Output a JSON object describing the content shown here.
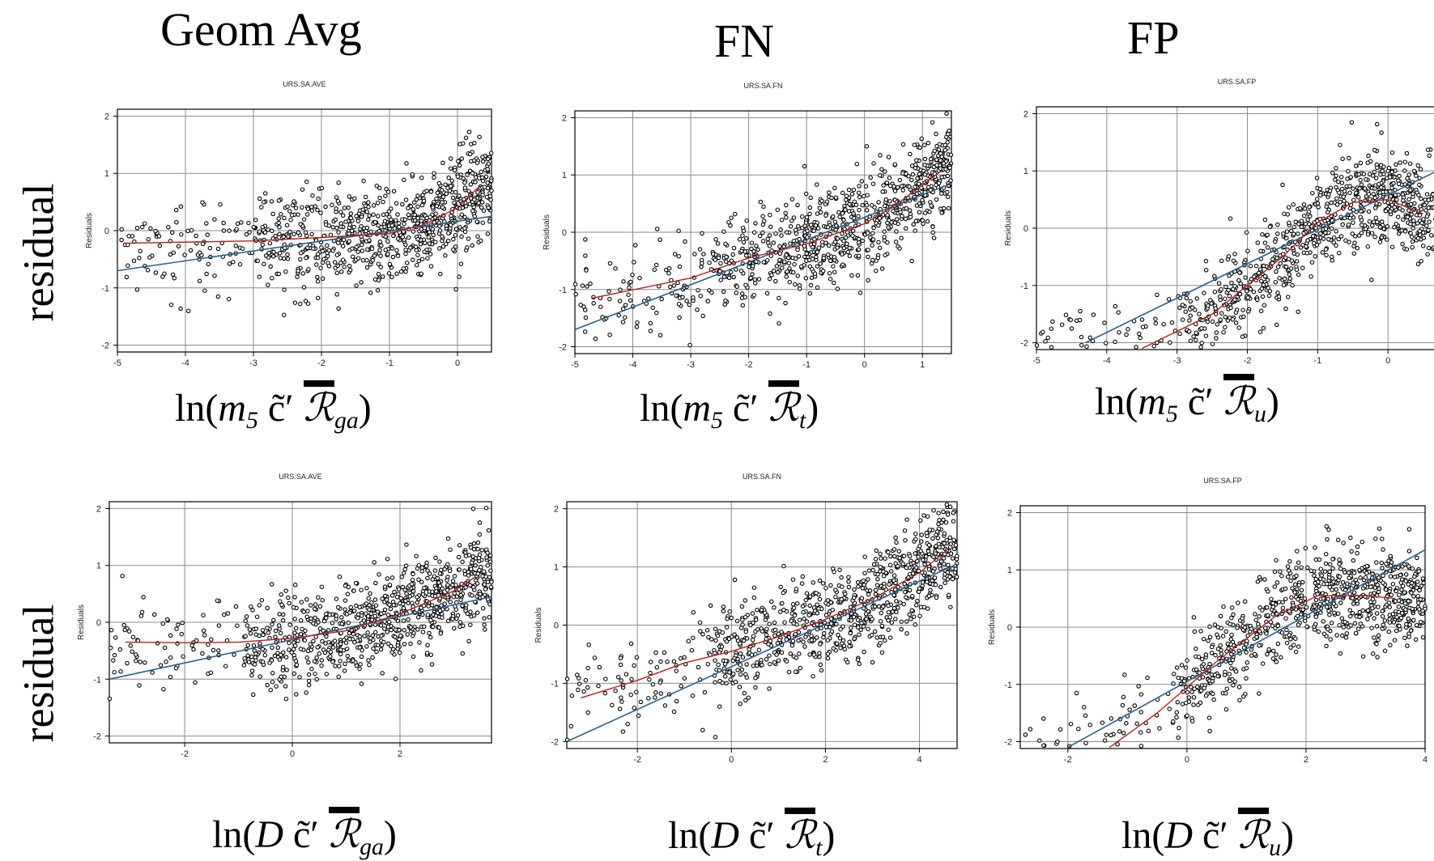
{
  "column_titles": [
    "Geom Avg",
    "FN",
    "FP"
  ],
  "row_label": "residual",
  "chart_data": [
    {
      "type": "scatter",
      "title": "URS.SA.AVE",
      "ylabel": "Residuals",
      "xlim": [
        -5,
        0.5
      ],
      "ylim": [
        -2,
        2
      ],
      "xticks": [
        -5,
        -4,
        -3,
        -2,
        -1,
        0
      ],
      "yticks": [
        -2,
        -1,
        0,
        1,
        2
      ],
      "xlabel": {
        "prefix": "ln(",
        "var": "m",
        "sub": "5",
        "mid": " c̃′ ",
        "R": "ℛ",
        "rsub": "ga",
        "suffix": ")"
      },
      "blue_fit": [
        [
          -5,
          -0.7
        ],
        [
          0.5,
          0.25
        ]
      ],
      "red_fit": [
        [
          -4.9,
          -0.22
        ],
        [
          -3,
          -0.18
        ],
        [
          -2,
          -0.12
        ],
        [
          -1,
          -0.05
        ],
        [
          -0.5,
          0.1
        ],
        [
          0,
          0.4
        ],
        [
          0.3,
          0.75
        ]
      ]
    },
    {
      "type": "scatter",
      "title": "URS.SA.FN",
      "ylabel": "Residuals",
      "xlim": [
        -5,
        1.5
      ],
      "ylim": [
        -2,
        2
      ],
      "xticks": [
        -5,
        -4,
        -3,
        -2,
        -1,
        0,
        1
      ],
      "yticks": [
        -2,
        -1,
        0,
        1,
        2
      ],
      "xlabel": {
        "prefix": "ln(",
        "var": "m",
        "sub": "5",
        "mid": " c̃′ ",
        "R": "ℛ",
        "rsub": "t",
        "suffix": ")"
      },
      "blue_fit": [
        [
          -5,
          -1.7
        ],
        [
          1.5,
          0.85
        ]
      ],
      "red_fit": [
        [
          -4.7,
          -1.15
        ],
        [
          -3,
          -0.8
        ],
        [
          -2,
          -0.45
        ],
        [
          -1,
          -0.2
        ],
        [
          0,
          0.15
        ],
        [
          0.5,
          0.45
        ],
        [
          1.3,
          1.05
        ]
      ]
    },
    {
      "type": "scatter",
      "title": "URS.SA.FP",
      "ylabel": "Residuals",
      "xlim": [
        -5,
        0.7
      ],
      "ylim": [
        -2,
        2
      ],
      "xticks": [
        -5,
        -4,
        -3,
        -2,
        -1,
        0
      ],
      "yticks": [
        -2,
        -1,
        0,
        1,
        2
      ],
      "xlabel": {
        "prefix": "ln(",
        "var": "m",
        "sub": "5",
        "mid": " c̃′ ",
        "R": "ℛ",
        "rsub": "u",
        "suffix": ")"
      },
      "blue_fit": [
        [
          -4.3,
          -2.0
        ],
        [
          0.7,
          1.0
        ]
      ],
      "red_fit": [
        [
          -3.5,
          -2.1
        ],
        [
          -2.5,
          -1.5
        ],
        [
          -1.5,
          -0.5
        ],
        [
          -1,
          0.1
        ],
        [
          -0.5,
          0.45
        ],
        [
          0,
          0.5
        ],
        [
          0.5,
          0.25
        ]
      ]
    },
    {
      "type": "scatter",
      "title": "URS.SA.AVE",
      "ylabel": "Residuals",
      "xlim": [
        -3.4,
        3.7
      ],
      "ylim": [
        -2,
        2
      ],
      "xticks": [
        -2,
        0,
        2
      ],
      "yticks": [
        -2,
        -1,
        0,
        1,
        2
      ],
      "xlabel": {
        "prefix": "ln(",
        "var": "D",
        "sub": "",
        "mid": " c̃′ ",
        "R": "ℛ",
        "rsub": "ga",
        "suffix": ")"
      },
      "blue_fit": [
        [
          -3.4,
          -1.0
        ],
        [
          3.7,
          0.45
        ]
      ],
      "red_fit": [
        [
          -3.1,
          -0.35
        ],
        [
          -2,
          -0.36
        ],
        [
          -1,
          -0.35
        ],
        [
          0,
          -0.28
        ],
        [
          1,
          -0.15
        ],
        [
          2,
          0.15
        ],
        [
          3,
          0.55
        ],
        [
          3.4,
          0.8
        ]
      ]
    },
    {
      "type": "scatter",
      "title": "URS.SA.FN",
      "ylabel": "Residuals",
      "xlim": [
        -3.5,
        4.8
      ],
      "ylim": [
        -2,
        2
      ],
      "xticks": [
        -2,
        0,
        2,
        4
      ],
      "yticks": [
        -2,
        -1,
        0,
        1,
        2
      ],
      "xlabel": {
        "prefix": "ln(",
        "var": "D",
        "sub": "",
        "mid": " c̃′ ",
        "R": "ℛ",
        "rsub": "t",
        "suffix": ")"
      },
      "blue_fit": [
        [
          -3.5,
          -2.0
        ],
        [
          4.8,
          1.05
        ]
      ],
      "red_fit": [
        [
          -3.2,
          -1.25
        ],
        [
          -2,
          -0.95
        ],
        [
          -1,
          -0.65
        ],
        [
          0,
          -0.45
        ],
        [
          1,
          -0.2
        ],
        [
          2,
          0.1
        ],
        [
          3,
          0.45
        ],
        [
          4,
          0.9
        ],
        [
          4.6,
          1.3
        ]
      ]
    },
    {
      "type": "scatter",
      "title": "URS.SA.FP",
      "ylabel": "Residuals",
      "xlim": [
        -2.8,
        4
      ],
      "ylim": [
        -2,
        2
      ],
      "xticks": [
        -2,
        0,
        2,
        4
      ],
      "yticks": [
        -2,
        -1,
        0,
        1,
        2
      ],
      "xlabel": {
        "prefix": "ln(",
        "var": "D",
        "sub": "",
        "mid": " c̃′ ",
        "R": "ℛ",
        "rsub": "u",
        "suffix": ")"
      },
      "blue_fit": [
        [
          -2,
          -2.1
        ],
        [
          4,
          1.35
        ]
      ],
      "red_fit": [
        [
          -1.3,
          -2.1
        ],
        [
          -0.5,
          -1.5
        ],
        [
          0.5,
          -0.6
        ],
        [
          1.5,
          0.2
        ],
        [
          2.2,
          0.55
        ],
        [
          3,
          0.55
        ],
        [
          3.5,
          0.5
        ]
      ]
    }
  ]
}
